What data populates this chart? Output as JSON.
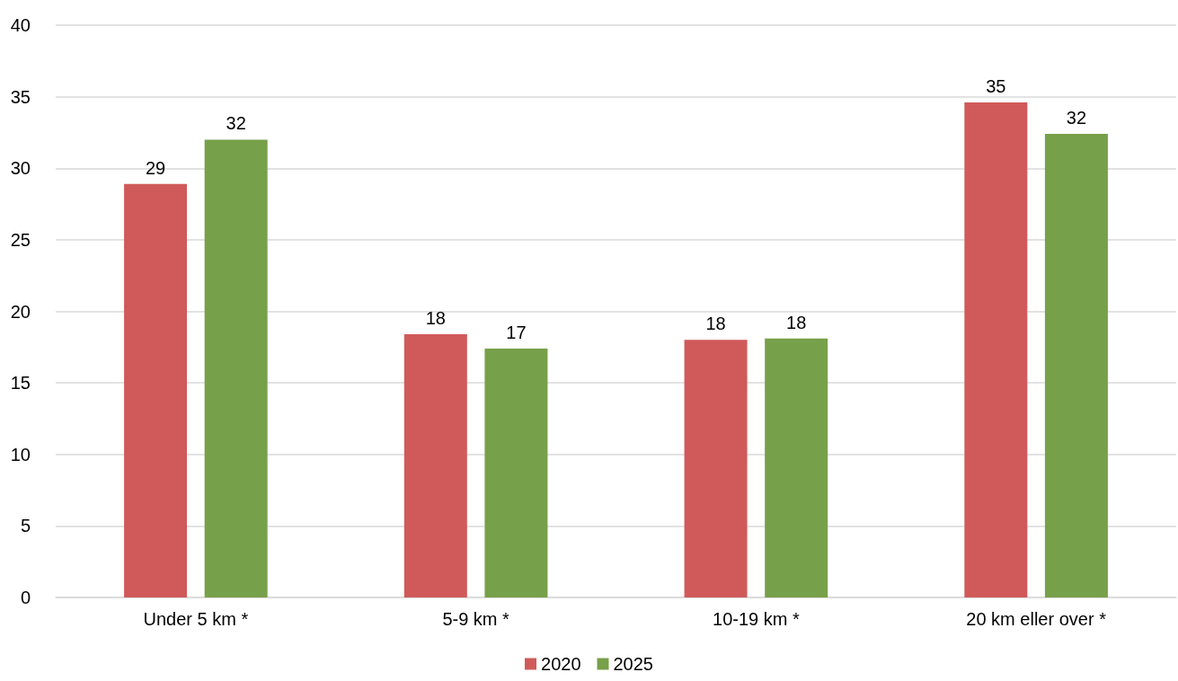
{
  "chart_data": {
    "type": "bar",
    "categories": [
      "Under 5 km *",
      "5-9 km *",
      "10-19 km *",
      "20 km eller over *"
    ],
    "series": [
      {
        "name": "2020",
        "color": "#d05a5a",
        "values": [
          28.9,
          18.4,
          18.0,
          34.6
        ],
        "value_labels": [
          "29",
          "18",
          "18",
          "35"
        ]
      },
      {
        "name": "2025",
        "color": "#77a04a",
        "values": [
          32.0,
          17.4,
          18.1,
          32.4
        ],
        "value_labels": [
          "32",
          "17",
          "18",
          "32"
        ]
      }
    ],
    "ylim": [
      0,
      40
    ],
    "yticks": [
      0,
      5,
      10,
      15,
      20,
      25,
      30,
      35,
      40
    ],
    "grid": "y",
    "legend": "bottom",
    "marker": "square"
  }
}
